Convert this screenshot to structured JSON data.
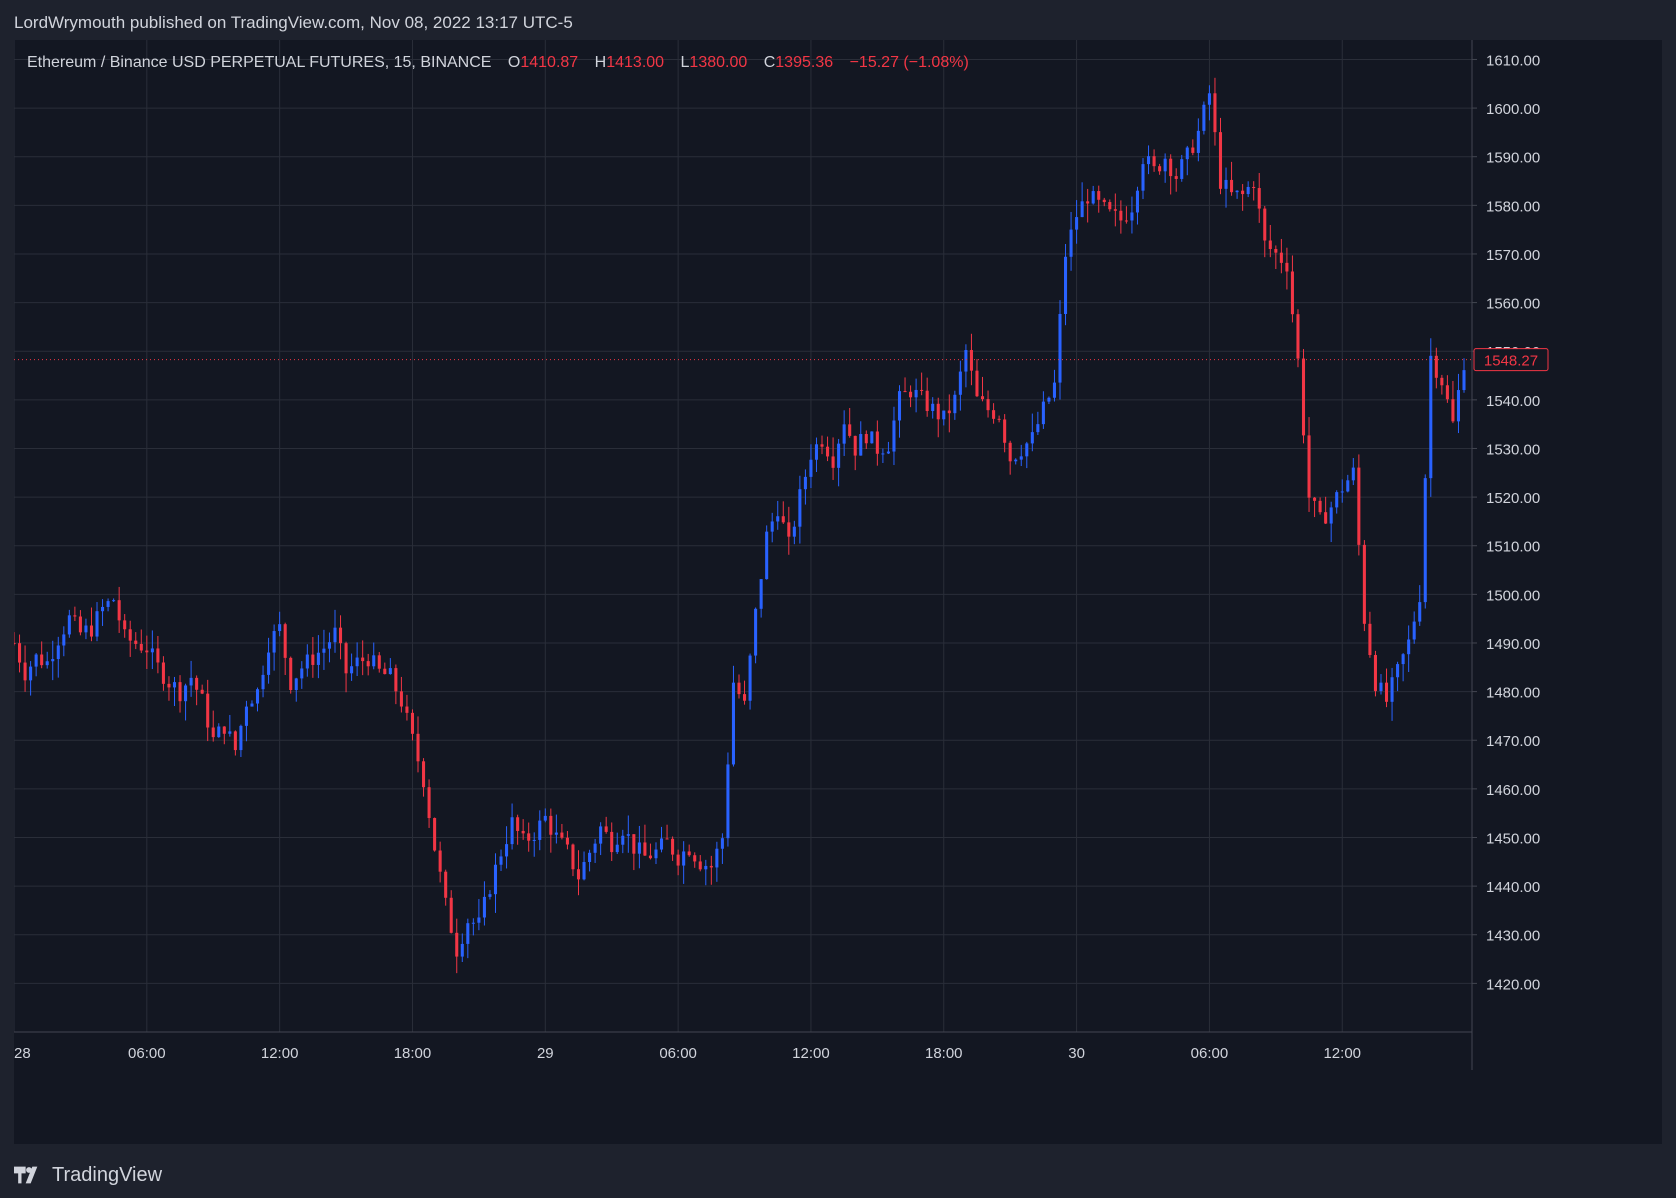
{
  "header": {
    "publisher_text": "LordWrymouth published on TradingView.com, Nov 08, 2022 13:17 UTC-5"
  },
  "legend": {
    "symbol": "Ethereum / Binance USD PERPETUAL FUTURES, 15, BINANCE",
    "o_label": "O",
    "o_value": "1410.87",
    "h_label": "H",
    "h_value": "1413.00",
    "l_label": "L",
    "l_value": "1380.00",
    "c_label": "C",
    "c_value": "1395.36",
    "change": "−15.27 (−1.08%)"
  },
  "price_badge": "1548.27",
  "footer": {
    "brand": "TradingView"
  },
  "colors": {
    "background": "#131722",
    "grid": "#2a2e39",
    "up": "#2962ff",
    "down": "#f23645",
    "text": "#d1d4dc"
  },
  "chart_data": {
    "type": "candlestick",
    "timeframe": "15",
    "ylim": [
      1410,
      1614
    ],
    "y_ticks": [
      1420,
      1430,
      1440,
      1450,
      1460,
      1470,
      1480,
      1490,
      1500,
      1510,
      1520,
      1530,
      1540,
      1550,
      1560,
      1570,
      1580,
      1590,
      1600,
      1610
    ],
    "y_tick_labels": [
      "1420.00",
      "1430.00",
      "1440.00",
      "1450.00",
      "1460.00",
      "1470.00",
      "1480.00",
      "1490.00",
      "1500.00",
      "1510.00",
      "1520.00",
      "1530.00",
      "1540.00",
      "1550.00",
      "1560.00",
      "1570.00",
      "1580.00",
      "1590.00",
      "1600.00",
      "1610.00"
    ],
    "x_ticks": [
      {
        "label": "28",
        "hour": 0
      },
      {
        "label": "06:00",
        "hour": 6
      },
      {
        "label": "12:00",
        "hour": 12
      },
      {
        "label": "18:00",
        "hour": 18
      },
      {
        "label": "29",
        "hour": 24
      },
      {
        "label": "06:00",
        "hour": 30
      },
      {
        "label": "12:00",
        "hour": 36
      },
      {
        "label": "18:00",
        "hour": 42
      },
      {
        "label": "30",
        "hour": 48
      },
      {
        "label": "06:00",
        "hour": 54
      },
      {
        "label": "12:00",
        "hour": 60
      }
    ],
    "x_range_hours": [
      0,
      65.5
    ],
    "last_price": 1548.27,
    "approx_close_path": [
      [
        0,
        1490
      ],
      [
        0.5,
        1484
      ],
      [
        1,
        1487
      ],
      [
        1.5,
        1486
      ],
      [
        2,
        1491
      ],
      [
        2.5,
        1495
      ],
      [
        3,
        1492
      ],
      [
        3.5,
        1493
      ],
      [
        4,
        1497
      ],
      [
        4.5,
        1499
      ],
      [
        5,
        1491
      ],
      [
        5.5,
        1490
      ],
      [
        6,
        1489
      ],
      [
        6.5,
        1485
      ],
      [
        7,
        1482
      ],
      [
        7.5,
        1480
      ],
      [
        8,
        1483
      ],
      [
        8.5,
        1478
      ],
      [
        9,
        1470
      ],
      [
        9.5,
        1473
      ],
      [
        10,
        1468
      ],
      [
        10.5,
        1478
      ],
      [
        11,
        1480
      ],
      [
        11.5,
        1490
      ],
      [
        12,
        1493
      ],
      [
        12.5,
        1482
      ],
      [
        13,
        1485
      ],
      [
        13.5,
        1487
      ],
      [
        14,
        1489
      ],
      [
        14.5,
        1492
      ],
      [
        15,
        1484
      ],
      [
        15.5,
        1486
      ],
      [
        16,
        1487
      ],
      [
        16.5,
        1484
      ],
      [
        17,
        1483
      ],
      [
        17.5,
        1478
      ],
      [
        18,
        1470
      ],
      [
        18.5,
        1462
      ],
      [
        19,
        1448
      ],
      [
        19.5,
        1436
      ],
      [
        20,
        1427
      ],
      [
        20.5,
        1433
      ],
      [
        21,
        1432
      ],
      [
        21.5,
        1440
      ],
      [
        22,
        1447
      ],
      [
        22.5,
        1453
      ],
      [
        23,
        1449
      ],
      [
        23.5,
        1451
      ],
      [
        24,
        1454
      ],
      [
        24.5,
        1450
      ],
      [
        25,
        1447
      ],
      [
        25.5,
        1442
      ],
      [
        26,
        1447
      ],
      [
        26.5,
        1452
      ],
      [
        27,
        1449
      ],
      [
        27.5,
        1452
      ],
      [
        28,
        1448
      ],
      [
        28.5,
        1446
      ],
      [
        29,
        1447
      ],
      [
        29.5,
        1449
      ],
      [
        30,
        1446
      ],
      [
        30.5,
        1448
      ],
      [
        31,
        1445
      ],
      [
        31.5,
        1444
      ],
      [
        32,
        1450
      ],
      [
        32.5,
        1482
      ],
      [
        33,
        1477
      ],
      [
        33.5,
        1496
      ],
      [
        34,
        1512
      ],
      [
        34.5,
        1518
      ],
      [
        35,
        1510
      ],
      [
        35.5,
        1520
      ],
      [
        36,
        1529
      ],
      [
        36.5,
        1532
      ],
      [
        37,
        1528
      ],
      [
        37.5,
        1536
      ],
      [
        38,
        1530
      ],
      [
        38.5,
        1533
      ],
      [
        39,
        1530
      ],
      [
        39.5,
        1531
      ],
      [
        40,
        1540
      ],
      [
        40.5,
        1542
      ],
      [
        41,
        1540
      ],
      [
        41.5,
        1538
      ],
      [
        42,
        1536
      ],
      [
        42.5,
        1540
      ],
      [
        43,
        1550
      ],
      [
        43.5,
        1540
      ],
      [
        44,
        1538
      ],
      [
        44.5,
        1537
      ],
      [
        45,
        1528
      ],
      [
        45.5,
        1530
      ],
      [
        46,
        1532
      ],
      [
        46.5,
        1538
      ],
      [
        47,
        1543
      ],
      [
        47.5,
        1570
      ],
      [
        48,
        1578
      ],
      [
        48.5,
        1582
      ],
      [
        49,
        1580
      ],
      [
        49.5,
        1578
      ],
      [
        50,
        1577
      ],
      [
        50.5,
        1580
      ],
      [
        51,
        1590
      ],
      [
        51.5,
        1587
      ],
      [
        52,
        1590
      ],
      [
        52.5,
        1586
      ],
      [
        53,
        1590
      ],
      [
        53.5,
        1595
      ],
      [
        54,
        1603
      ],
      [
        54.5,
        1585
      ],
      [
        55,
        1582
      ],
      [
        55.5,
        1582
      ],
      [
        56,
        1585
      ],
      [
        56.5,
        1572
      ],
      [
        57,
        1570
      ],
      [
        57.5,
        1568
      ],
      [
        58,
        1548
      ],
      [
        58.5,
        1520
      ],
      [
        59,
        1515
      ],
      [
        59.5,
        1518
      ],
      [
        60,
        1522
      ],
      [
        60.5,
        1525
      ],
      [
        61,
        1495
      ],
      [
        61.5,
        1482
      ],
      [
        62,
        1478
      ],
      [
        62.5,
        1484
      ],
      [
        63,
        1490
      ],
      [
        63.5,
        1500
      ],
      [
        64,
        1549
      ],
      [
        64.5,
        1544
      ],
      [
        65,
        1535
      ],
      [
        65.5,
        1548
      ]
    ]
  }
}
